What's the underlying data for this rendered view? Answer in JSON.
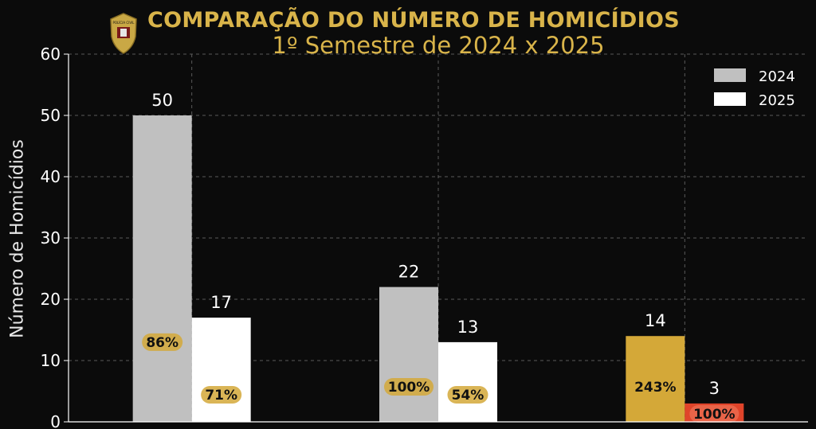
{
  "header": {
    "badge_text": "POLÍCIA CIVIL",
    "title": "COMPARAÇÃO DO NÚMERO DE HOMICÍDIOS",
    "subtitle": "1º Semestre de 2024 x 2025"
  },
  "colors": {
    "background": "#0b0b0b",
    "title": "#d9b44a",
    "bar_2024": "#c0c0c0",
    "bar_2025": "#ffffff",
    "highlight_gold": "#d4a838",
    "highlight_red": "#e0442a"
  },
  "chart_data": {
    "type": "bar",
    "title": "COMPARAÇÃO DO NÚMERO DE HOMICÍDIOS",
    "subtitle": "1º Semestre de 2024 x 2025",
    "xlabel": "",
    "ylabel": "Número de Homicídios",
    "ylim": [
      0,
      60
    ],
    "yticks": [
      0,
      10,
      20,
      30,
      40,
      50,
      60
    ],
    "grid": true,
    "legend_position": "top-right",
    "categories": [
      "",
      "",
      ""
    ],
    "series": [
      {
        "name": "2024",
        "values": [
          50,
          22,
          14
        ]
      },
      {
        "name": "2025",
        "values": [
          17,
          13,
          3
        ]
      }
    ],
    "value_labels": {
      "2024": [
        "50",
        "22",
        "14"
      ],
      "2025": [
        "17",
        "13",
        "3"
      ]
    },
    "percent_labels": {
      "2024": [
        "86%",
        "100%",
        "243%"
      ],
      "2025": [
        "71%",
        "54%",
        "100%"
      ]
    },
    "bar_colors": {
      "2024": [
        "#c0c0c0",
        "#c0c0c0",
        "#d4a838"
      ],
      "2025": [
        "#ffffff",
        "#ffffff",
        "#e0442a"
      ]
    }
  }
}
